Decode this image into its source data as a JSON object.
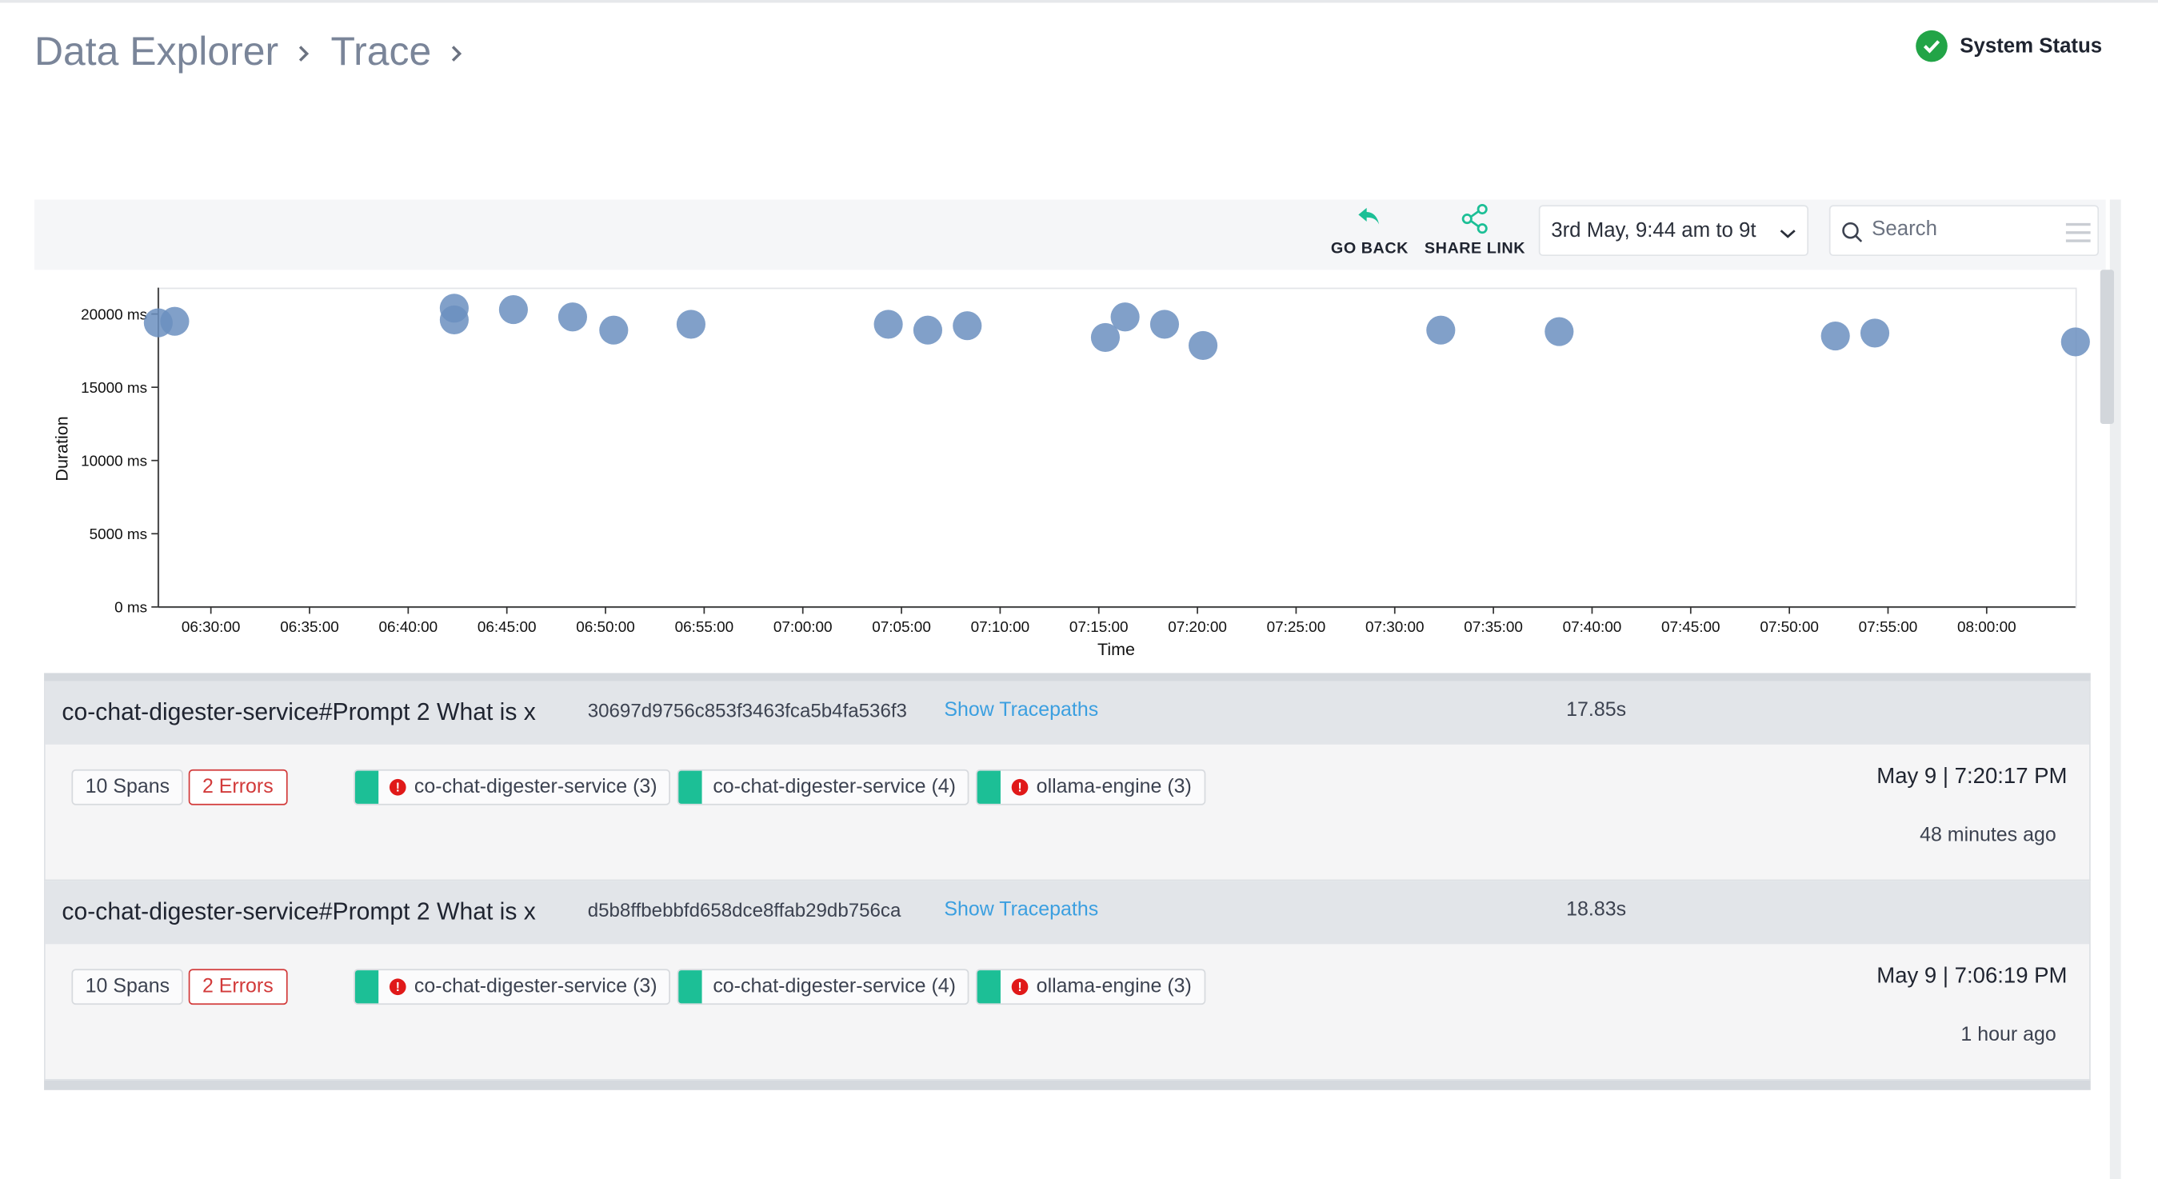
{
  "breadcrumb": {
    "items": [
      "Data Explorer",
      "Trace"
    ]
  },
  "header": {
    "system_status": "System Status"
  },
  "toolbar": {
    "go_back": "GO BACK",
    "share_link": "SHARE LINK",
    "date_range": "3rd May, 9:44 am to 9t",
    "search_placeholder": "Search"
  },
  "colors": {
    "accent": "#1cbf96",
    "error": "#e01919",
    "link": "#3b9fe0",
    "status_ok": "#22a447",
    "point": "#6b8fbf"
  },
  "chart_data": {
    "type": "scatter",
    "xlabel": "Time",
    "ylabel": "Duration",
    "y_ticks": [
      0,
      5000,
      10000,
      15000,
      20000
    ],
    "y_tick_labels": [
      "0 ms",
      "5000 ms",
      "10000 ms",
      "15000 ms",
      "20000 ms"
    ],
    "ylim": [
      0,
      21800
    ],
    "xlim": [
      "06:27:20",
      "08:04:30"
    ],
    "x_ticks": [
      "06:30:00",
      "06:35:00",
      "06:40:00",
      "06:45:00",
      "06:50:00",
      "06:55:00",
      "07:00:00",
      "07:05:00",
      "07:10:00",
      "07:15:00",
      "07:20:00",
      "07:25:00",
      "07:30:00",
      "07:35:00",
      "07:40:00",
      "07:45:00",
      "07:50:00",
      "07:55:00",
      "08:00:00"
    ],
    "grid": false,
    "legend": "none",
    "series": [
      {
        "points": [
          {
            "x": "06:27:20",
            "y": 19400
          },
          {
            "x": "06:28:10",
            "y": 19500
          },
          {
            "x": "06:42:20",
            "y": 20400
          },
          {
            "x": "06:42:20",
            "y": 19600
          },
          {
            "x": "06:45:20",
            "y": 20300
          },
          {
            "x": "06:48:20",
            "y": 19800
          },
          {
            "x": "06:50:25",
            "y": 18900
          },
          {
            "x": "06:54:20",
            "y": 19300
          },
          {
            "x": "07:04:20",
            "y": 19300
          },
          {
            "x": "07:06:20",
            "y": 18900
          },
          {
            "x": "07:08:20",
            "y": 19200
          },
          {
            "x": "07:15:20",
            "y": 18400
          },
          {
            "x": "07:16:20",
            "y": 19800
          },
          {
            "x": "07:18:20",
            "y": 19300
          },
          {
            "x": "07:20:17",
            "y": 17850
          },
          {
            "x": "07:32:20",
            "y": 18900
          },
          {
            "x": "07:38:20",
            "y": 18800
          },
          {
            "x": "07:52:20",
            "y": 18500
          },
          {
            "x": "07:54:20",
            "y": 18700
          },
          {
            "x": "08:04:30",
            "y": 18100
          }
        ]
      }
    ]
  },
  "traces": [
    {
      "title": "co-chat-digester-service#Prompt 2  What is x",
      "trace_id": "30697d9756c853f3463fca5b4fa536f3",
      "show_tracepaths": "Show Tracepaths",
      "duration": "17.85s",
      "spans": "10 Spans",
      "errors": "2 Errors",
      "services": [
        "co-chat-digester-service (3)",
        "co-chat-digester-service (4)",
        "ollama-engine (3)"
      ],
      "date": "May 9 | 7:20:17 PM",
      "ago": "48 minutes ago"
    },
    {
      "title": "co-chat-digester-service#Prompt 2  What is x",
      "trace_id": "d5b8ffbebbfd658dce8ffab29db756ca",
      "show_tracepaths": "Show Tracepaths",
      "duration": "18.83s",
      "spans": "10 Spans",
      "errors": "2 Errors",
      "services": [
        "co-chat-digester-service (3)",
        "co-chat-digester-service (4)",
        "ollama-engine (3)"
      ],
      "date": "May 9 | 7:06:19 PM",
      "ago": "1 hour ago"
    }
  ]
}
